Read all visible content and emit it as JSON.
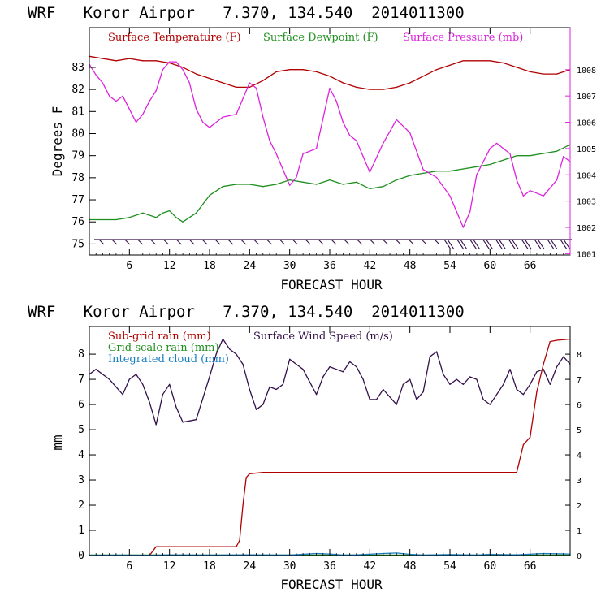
{
  "chart_data": [
    {
      "type": "line",
      "title": "WRF   Koror Airpor   7.370, 134.540  2014011300",
      "xlabel": "FORECAST HOUR",
      "ylabel": "Degrees F",
      "xlim": [
        0,
        72
      ],
      "ylim": [
        74.5,
        84.8
      ],
      "x_ticks": [
        6,
        12,
        18,
        24,
        30,
        36,
        42,
        48,
        54,
        60,
        66
      ],
      "y_ticks": [
        75,
        76,
        77,
        78,
        79,
        80,
        81,
        82,
        83
      ],
      "y2_label": "",
      "y2lim": [
        1000.95,
        1009.6
      ],
      "y2_ticks": [
        1001,
        1002,
        1003,
        1004,
        1005,
        1006,
        1007,
        1008
      ],
      "legend": [
        {
          "label": "Surface Temperature (F)",
          "color": "#b00000"
        },
        {
          "label": "Surface Dewpoint (F)",
          "color": "#1f8f1f"
        },
        {
          "label": "Surface Pressure (mb)",
          "color": "#dd22dd"
        }
      ],
      "series": [
        {
          "name": "Surface Temperature (F)",
          "axis": "left",
          "color": "#b00000",
          "x": [
            0,
            2,
            4,
            6,
            8,
            10,
            12,
            14,
            16,
            18,
            20,
            22,
            24,
            26,
            28,
            30,
            32,
            34,
            36,
            38,
            40,
            42,
            44,
            46,
            48,
            50,
            52,
            54,
            56,
            58,
            60,
            62,
            64,
            66,
            68,
            70,
            72
          ],
          "values": [
            83.5,
            83.4,
            83.3,
            83.4,
            83.3,
            83.3,
            83.2,
            83.0,
            82.7,
            82.5,
            82.3,
            82.1,
            82.1,
            82.4,
            82.8,
            82.9,
            82.9,
            82.8,
            82.6,
            82.3,
            82.1,
            82.0,
            82.0,
            82.1,
            82.3,
            82.6,
            82.9,
            83.1,
            83.3,
            83.3,
            83.3,
            83.2,
            83.0,
            82.8,
            82.7,
            82.7,
            82.9
          ]
        },
        {
          "name": "Surface Dewpoint (F)",
          "axis": "left",
          "color": "#1f8f1f",
          "x": [
            0,
            2,
            4,
            6,
            8,
            10,
            11,
            12,
            13,
            14,
            16,
            18,
            20,
            22,
            24,
            26,
            28,
            30,
            32,
            34,
            36,
            38,
            40,
            42,
            44,
            46,
            48,
            50,
            52,
            54,
            56,
            58,
            60,
            62,
            64,
            66,
            68,
            70,
            72
          ],
          "values": [
            76.1,
            76.1,
            76.1,
            76.2,
            76.4,
            76.2,
            76.4,
            76.5,
            76.2,
            76.0,
            76.4,
            77.2,
            77.6,
            77.7,
            77.7,
            77.6,
            77.7,
            77.9,
            77.8,
            77.7,
            77.9,
            77.7,
            77.8,
            77.5,
            77.6,
            77.9,
            78.1,
            78.2,
            78.3,
            78.3,
            78.4,
            78.5,
            78.6,
            78.8,
            79.0,
            79.0,
            79.1,
            79.2,
            79.5
          ]
        },
        {
          "name": "Surface Pressure (mb)",
          "axis": "right",
          "color": "#dd22dd",
          "x": [
            0,
            1,
            2,
            3,
            4,
            5,
            6,
            7,
            8,
            9,
            10,
            11,
            12,
            13,
            14,
            15,
            16,
            17,
            18,
            20,
            22,
            24,
            25,
            26,
            27,
            28,
            29,
            30,
            31,
            32,
            34,
            36,
            37,
            38,
            39,
            40,
            42,
            44,
            46,
            48,
            50,
            52,
            54,
            56,
            57,
            58,
            60,
            61,
            62,
            63,
            64,
            65,
            66,
            68,
            70,
            71,
            72
          ],
          "values": [
            1008.2,
            1007.8,
            1007.5,
            1007.0,
            1006.8,
            1007.0,
            1006.5,
            1006.0,
            1006.3,
            1006.8,
            1007.2,
            1008.0,
            1008.3,
            1008.3,
            1008.0,
            1007.5,
            1006.5,
            1006.0,
            1005.8,
            1006.2,
            1006.3,
            1007.5,
            1007.3,
            1006.2,
            1005.3,
            1004.8,
            1004.2,
            1003.6,
            1003.9,
            1004.8,
            1005.0,
            1007.3,
            1006.8,
            1006.0,
            1005.5,
            1005.3,
            1004.1,
            1005.2,
            1006.1,
            1005.6,
            1004.2,
            1003.9,
            1003.2,
            1002.0,
            1002.6,
            1004.0,
            1005.0,
            1005.2,
            1005.0,
            1004.8,
            1003.8,
            1003.2,
            1003.4,
            1003.2,
            1003.8,
            1004.7,
            1004.5
          ]
        }
      ],
      "wind_barbs": {
        "y_level": 75.2,
        "count": 37
      }
    },
    {
      "type": "line",
      "title": "WRF   Koror Airpor   7.370, 134.540  2014011300",
      "xlabel": "FORECAST HOUR",
      "ylabel": "mm",
      "xlim": [
        0,
        72
      ],
      "ylim": [
        0,
        9.1
      ],
      "x_ticks": [
        6,
        12,
        18,
        24,
        30,
        36,
        42,
        48,
        54,
        60,
        66
      ],
      "y_ticks": [
        0,
        1,
        2,
        3,
        4,
        5,
        6,
        7,
        8
      ],
      "y2lim": [
        0,
        9.1
      ],
      "y2_ticks": [
        0,
        1,
        2,
        3,
        4,
        5,
        6,
        7,
        8
      ],
      "legend": [
        {
          "label": "Sub-grid rain (mm)",
          "color": "#b00000"
        },
        {
          "label": "Surface Wind Speed (m/s)",
          "color": "#33104a"
        },
        {
          "label": "Grid-scale rain (mm)",
          "color": "#1f8f1f"
        },
        {
          "label": "Integrated cloud (mm)",
          "color": "#1a7fc0"
        }
      ],
      "series": [
        {
          "name": "Sub-grid rain (mm)",
          "axis": "left",
          "color": "#b00000",
          "x": [
            0,
            9,
            10,
            22,
            22.5,
            23,
            23.5,
            24,
            26,
            64,
            65,
            66,
            67,
            68,
            69,
            70,
            72
          ],
          "values": [
            0.0,
            0.0,
            0.35,
            0.35,
            0.6,
            2.0,
            3.1,
            3.25,
            3.3,
            3.3,
            4.4,
            4.7,
            6.5,
            7.6,
            8.5,
            8.55,
            8.6
          ]
        },
        {
          "name": "Surface Wind Speed (m/s)",
          "axis": "right",
          "color": "#33104a",
          "x": [
            0,
            1,
            2,
            3,
            4,
            5,
            6,
            7,
            8,
            9,
            10,
            11,
            12,
            13,
            14,
            16,
            18,
            19,
            20,
            21,
            22,
            23,
            24,
            25,
            26,
            27,
            28,
            29,
            30,
            31,
            32,
            33,
            34,
            35,
            36,
            37,
            38,
            39,
            40,
            41,
            42,
            43,
            44,
            45,
            46,
            47,
            48,
            49,
            50,
            51,
            52,
            53,
            54,
            55,
            56,
            57,
            58,
            59,
            60,
            61,
            62,
            63,
            64,
            65,
            66,
            67,
            68,
            69,
            70,
            71,
            72
          ],
          "values": [
            7.2,
            7.4,
            7.2,
            7.0,
            6.7,
            6.4,
            7.0,
            7.2,
            6.8,
            6.1,
            5.2,
            6.4,
            6.8,
            5.9,
            5.3,
            5.4,
            7.1,
            8.0,
            8.6,
            8.2,
            8.0,
            7.6,
            6.6,
            5.8,
            6.0,
            6.7,
            6.6,
            6.8,
            7.8,
            7.6,
            7.4,
            6.9,
            6.4,
            7.1,
            7.5,
            7.4,
            7.3,
            7.7,
            7.5,
            7.0,
            6.2,
            6.2,
            6.6,
            6.3,
            6.0,
            6.8,
            7.0,
            6.2,
            6.5,
            7.9,
            8.1,
            7.2,
            6.8,
            7.0,
            6.8,
            7.1,
            7.0,
            6.2,
            6.0,
            6.4,
            6.8,
            7.4,
            6.6,
            6.4,
            6.8,
            7.3,
            7.4,
            6.8,
            7.5,
            7.9,
            7.6
          ]
        },
        {
          "name": "Grid-scale rain (mm)",
          "axis": "left",
          "color": "#1f8f1f",
          "x": [
            0,
            72
          ],
          "values": [
            0.02,
            0.02
          ]
        },
        {
          "name": "Integrated cloud (mm)",
          "axis": "left",
          "color": "#1a7fc0",
          "x": [
            0,
            5,
            9,
            12,
            18,
            24,
            30,
            34,
            36,
            38,
            40,
            44,
            46,
            48,
            50,
            54,
            58,
            60,
            64,
            68,
            72
          ],
          "values": [
            0.01,
            0.02,
            0.01,
            0.03,
            0.02,
            0.03,
            0.02,
            0.08,
            0.06,
            0.02,
            0.03,
            0.08,
            0.1,
            0.05,
            0.02,
            0.04,
            0.02,
            0.05,
            0.03,
            0.08,
            0.06
          ]
        }
      ]
    }
  ]
}
